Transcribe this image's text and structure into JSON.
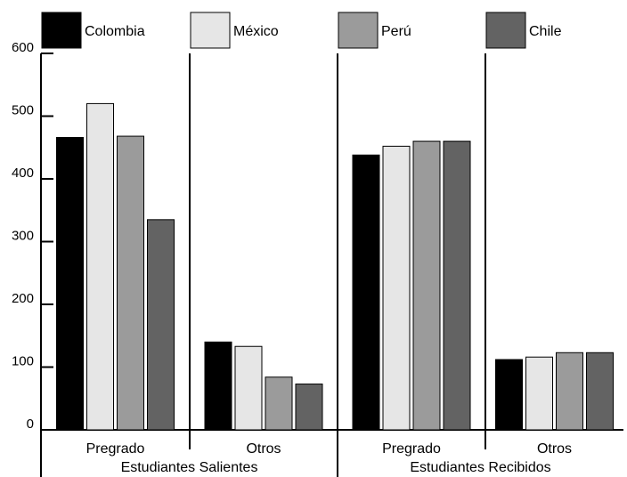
{
  "chart_data": {
    "type": "bar",
    "title": "",
    "xlabel": "",
    "ylabel": "",
    "ylim": [
      0,
      600
    ],
    "yticks": [
      0,
      100,
      200,
      300,
      400,
      500,
      600
    ],
    "grid": false,
    "legend_position": "top",
    "groups": [
      {
        "label": "Estudiantes Salientes",
        "categories": [
          "Pregrado",
          "Otros"
        ]
      },
      {
        "label": "Estudiantes Recibidos",
        "categories": [
          "Pregrado",
          "Otros"
        ]
      }
    ],
    "categories": [
      "Pregrado",
      "Otros",
      "Pregrado",
      "Otros"
    ],
    "series": [
      {
        "name": "Colombia",
        "color": "#000000",
        "values": [
          466,
          140,
          438,
          112
        ]
      },
      {
        "name": "México",
        "color": "#e6e6e6",
        "values": [
          520,
          133,
          452,
          116
        ]
      },
      {
        "name": "Perú",
        "color": "#9b9b9b",
        "values": [
          468,
          84,
          460,
          123
        ]
      },
      {
        "name": "Chile",
        "color": "#636363",
        "values": [
          335,
          73,
          460,
          123
        ]
      }
    ]
  }
}
